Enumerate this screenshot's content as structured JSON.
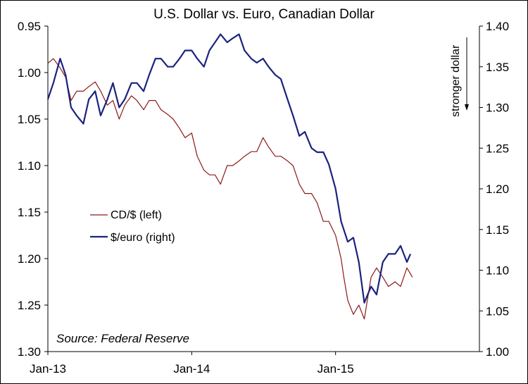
{
  "chart_data": {
    "type": "line",
    "title": "U.S. Dollar vs. Euro, Canadian Dollar",
    "x_tick_labels": [
      "Jan-13",
      "Jan-14",
      "Jan-15"
    ],
    "x_tick_dates": [
      "2013-01-01",
      "2014-01-01",
      "2015-01-01"
    ],
    "x_range": [
      "2013-01-01",
      "2016-01-01"
    ],
    "y_left": {
      "ylim": [
        0.95,
        1.3
      ],
      "inverted": true,
      "ticks": [
        0.95,
        1.0,
        1.05,
        1.1,
        1.15,
        1.2,
        1.25,
        1.3
      ],
      "tick_labels": [
        "0.95",
        "1.00",
        "1.05",
        "1.10",
        "1.15",
        "1.20",
        "1.25",
        "1.30"
      ]
    },
    "y_right": {
      "ylim": [
        1.0,
        1.4
      ],
      "ticks": [
        1.0,
        1.05,
        1.1,
        1.15,
        1.2,
        1.25,
        1.3,
        1.35,
        1.4
      ],
      "tick_labels": [
        "1.00",
        "1.05",
        "1.10",
        "1.15",
        "1.20",
        "1.25",
        "1.30",
        "1.35",
        "1.40"
      ]
    },
    "grid": false,
    "legend_position": "left-middle",
    "annotation": "stronger dollar",
    "source": "Source: Federal Reserve",
    "series": [
      {
        "name": "CD/$ (left)",
        "axis": "left",
        "color": "#8b1a1a",
        "points": [
          [
            "2013-01-01",
            0.99
          ],
          [
            "2013-01-15",
            0.985
          ],
          [
            "2013-02-01",
            0.995
          ],
          [
            "2013-02-15",
            1.005
          ],
          [
            "2013-03-01",
            1.03
          ],
          [
            "2013-03-15",
            1.02
          ],
          [
            "2013-04-01",
            1.02
          ],
          [
            "2013-04-15",
            1.015
          ],
          [
            "2013-05-01",
            1.01
          ],
          [
            "2013-05-15",
            1.02
          ],
          [
            "2013-06-01",
            1.035
          ],
          [
            "2013-06-15",
            1.03
          ],
          [
            "2013-07-01",
            1.05
          ],
          [
            "2013-07-15",
            1.035
          ],
          [
            "2013-08-01",
            1.025
          ],
          [
            "2013-08-15",
            1.03
          ],
          [
            "2013-09-01",
            1.04
          ],
          [
            "2013-09-15",
            1.03
          ],
          [
            "2013-10-01",
            1.03
          ],
          [
            "2013-10-15",
            1.04
          ],
          [
            "2013-11-01",
            1.045
          ],
          [
            "2013-11-15",
            1.05
          ],
          [
            "2013-12-01",
            1.06
          ],
          [
            "2013-12-15",
            1.07
          ],
          [
            "2014-01-01",
            1.065
          ],
          [
            "2014-01-15",
            1.09
          ],
          [
            "2014-02-01",
            1.105
          ],
          [
            "2014-02-15",
            1.11
          ],
          [
            "2014-03-01",
            1.11
          ],
          [
            "2014-03-15",
            1.12
          ],
          [
            "2014-04-01",
            1.1
          ],
          [
            "2014-04-15",
            1.1
          ],
          [
            "2014-05-01",
            1.095
          ],
          [
            "2014-05-15",
            1.09
          ],
          [
            "2014-06-01",
            1.085
          ],
          [
            "2014-06-15",
            1.085
          ],
          [
            "2014-07-01",
            1.07
          ],
          [
            "2014-07-15",
            1.08
          ],
          [
            "2014-08-01",
            1.09
          ],
          [
            "2014-08-15",
            1.09
          ],
          [
            "2014-09-01",
            1.095
          ],
          [
            "2014-09-15",
            1.1
          ],
          [
            "2014-10-01",
            1.12
          ],
          [
            "2014-10-15",
            1.13
          ],
          [
            "2014-11-01",
            1.13
          ],
          [
            "2014-11-15",
            1.14
          ],
          [
            "2014-12-01",
            1.16
          ],
          [
            "2014-12-15",
            1.16
          ],
          [
            "2015-01-01",
            1.175
          ],
          [
            "2015-01-15",
            1.2
          ],
          [
            "2015-01-22",
            1.22
          ],
          [
            "2015-02-01",
            1.245
          ],
          [
            "2015-02-15",
            1.26
          ],
          [
            "2015-03-01",
            1.25
          ],
          [
            "2015-03-15",
            1.265
          ],
          [
            "2015-04-01",
            1.22
          ],
          [
            "2015-04-15",
            1.21
          ],
          [
            "2015-05-01",
            1.22
          ],
          [
            "2015-05-15",
            1.23
          ],
          [
            "2015-06-01",
            1.225
          ],
          [
            "2015-06-15",
            1.23
          ],
          [
            "2015-07-01",
            1.21
          ],
          [
            "2015-07-15",
            1.22
          ]
        ]
      },
      {
        "name": "$/euro (right)",
        "axis": "right",
        "color": "#1a237e",
        "points": [
          [
            "2013-01-01",
            1.31
          ],
          [
            "2013-01-15",
            1.33
          ],
          [
            "2013-02-01",
            1.36
          ],
          [
            "2013-02-15",
            1.34
          ],
          [
            "2013-03-01",
            1.3
          ],
          [
            "2013-03-15",
            1.29
          ],
          [
            "2013-04-01",
            1.28
          ],
          [
            "2013-04-15",
            1.31
          ],
          [
            "2013-05-01",
            1.32
          ],
          [
            "2013-05-15",
            1.29
          ],
          [
            "2013-06-01",
            1.31
          ],
          [
            "2013-06-15",
            1.33
          ],
          [
            "2013-07-01",
            1.3
          ],
          [
            "2013-07-15",
            1.31
          ],
          [
            "2013-08-01",
            1.33
          ],
          [
            "2013-08-15",
            1.33
          ],
          [
            "2013-09-01",
            1.32
          ],
          [
            "2013-09-15",
            1.34
          ],
          [
            "2013-10-01",
            1.36
          ],
          [
            "2013-10-15",
            1.36
          ],
          [
            "2013-11-01",
            1.35
          ],
          [
            "2013-11-15",
            1.35
          ],
          [
            "2013-12-01",
            1.36
          ],
          [
            "2013-12-15",
            1.37
          ],
          [
            "2014-01-01",
            1.37
          ],
          [
            "2014-01-15",
            1.36
          ],
          [
            "2014-02-01",
            1.35
          ],
          [
            "2014-02-15",
            1.37
          ],
          [
            "2014-03-01",
            1.38
          ],
          [
            "2014-03-15",
            1.39
          ],
          [
            "2014-04-01",
            1.38
          ],
          [
            "2014-04-15",
            1.385
          ],
          [
            "2014-05-01",
            1.39
          ],
          [
            "2014-05-15",
            1.37
          ],
          [
            "2014-06-01",
            1.36
          ],
          [
            "2014-06-15",
            1.355
          ],
          [
            "2014-07-01",
            1.36
          ],
          [
            "2014-07-15",
            1.35
          ],
          [
            "2014-08-01",
            1.34
          ],
          [
            "2014-08-15",
            1.335
          ],
          [
            "2014-09-01",
            1.31
          ],
          [
            "2014-09-15",
            1.29
          ],
          [
            "2014-10-01",
            1.265
          ],
          [
            "2014-10-15",
            1.27
          ],
          [
            "2014-11-01",
            1.25
          ],
          [
            "2014-11-15",
            1.245
          ],
          [
            "2014-12-01",
            1.245
          ],
          [
            "2014-12-15",
            1.23
          ],
          [
            "2015-01-01",
            1.2
          ],
          [
            "2015-01-15",
            1.16
          ],
          [
            "2015-02-01",
            1.135
          ],
          [
            "2015-02-15",
            1.14
          ],
          [
            "2015-03-01",
            1.11
          ],
          [
            "2015-03-15",
            1.06
          ],
          [
            "2015-04-01",
            1.08
          ],
          [
            "2015-04-15",
            1.07
          ],
          [
            "2015-05-01",
            1.11
          ],
          [
            "2015-05-15",
            1.12
          ],
          [
            "2015-06-01",
            1.12
          ],
          [
            "2015-06-15",
            1.13
          ],
          [
            "2015-07-01",
            1.11
          ],
          [
            "2015-07-10",
            1.12
          ]
        ]
      }
    ]
  }
}
